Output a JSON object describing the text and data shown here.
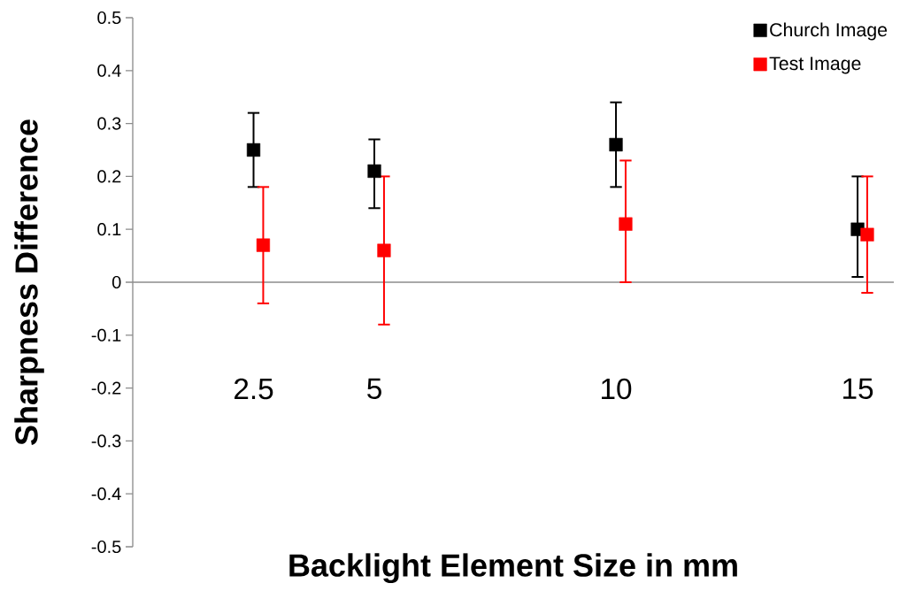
{
  "chart_data": {
    "type": "scatter",
    "xlabel": "Backlight Element Size in mm",
    "ylabel": "Sharpness Difference",
    "xlim": [
      0,
      15.75
    ],
    "xticks": [
      2.5,
      5,
      10,
      15
    ],
    "ylim": [
      -0.5,
      0.5
    ],
    "yticks": [
      -0.5,
      -0.4,
      -0.3,
      -0.2,
      -0.1,
      0,
      0.1,
      0.2,
      0.3,
      0.4,
      0.5
    ],
    "marker": "square",
    "legend": "top right",
    "series": [
      {
        "name": "Church Image",
        "color": "#000000",
        "x": [
          2.5,
          5,
          10,
          15
        ],
        "values": [
          0.25,
          0.21,
          0.26,
          0.1
        ],
        "errors": [
          [
            0.18,
            0.32
          ],
          [
            0.14,
            0.27
          ],
          [
            0.18,
            0.34
          ],
          [
            0.01,
            0.2
          ]
        ]
      },
      {
        "name": "Test Image",
        "color": "#ff0000",
        "x": [
          2.7,
          5.2,
          10.2,
          15.2
        ],
        "values": [
          0.07,
          0.06,
          0.11,
          0.09
        ],
        "errors": [
          [
            -0.04,
            0.18
          ],
          [
            -0.08,
            0.2
          ],
          [
            0.0,
            0.23
          ],
          [
            -0.02,
            0.2
          ]
        ]
      }
    ]
  }
}
